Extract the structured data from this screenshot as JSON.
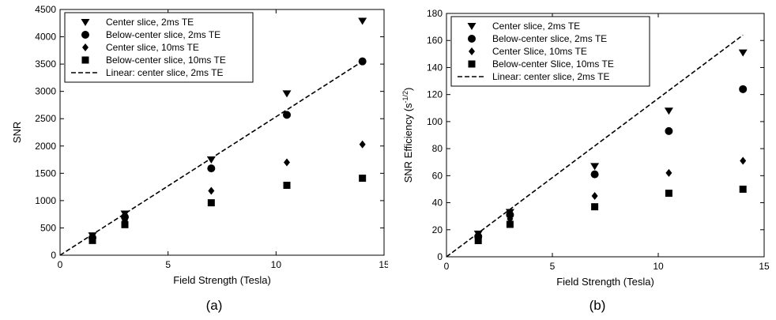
{
  "chart_data": [
    {
      "type": "scatter",
      "panel_label": "(a)",
      "xlabel": "Field Strength (Tesla)",
      "ylabel": "SNR",
      "xlim": [
        0,
        15
      ],
      "ylim": [
        0,
        4500
      ],
      "xticks": [
        0,
        5,
        10,
        15
      ],
      "yticks": [
        0,
        500,
        1000,
        1500,
        2000,
        2500,
        3000,
        3500,
        4000,
        4500
      ],
      "legend_position": "top-left",
      "grid": false,
      "series": [
        {
          "name": "Center slice, 2ms TE",
          "marker": "triangle-down",
          "x": [
            1.5,
            3,
            7,
            10.5,
            14
          ],
          "y": [
            360,
            760,
            1750,
            2960,
            4290
          ]
        },
        {
          "name": "Below-center slice, 2ms TE",
          "marker": "circle",
          "x": [
            1.5,
            3,
            7,
            10.5,
            14
          ],
          "y": [
            320,
            700,
            1590,
            2570,
            3550
          ]
        },
        {
          "name": "Center slice, 10ms TE",
          "marker": "diamond",
          "x": [
            1.5,
            3,
            7,
            10.5,
            14
          ],
          "y": [
            300,
            640,
            1180,
            1700,
            2030
          ]
        },
        {
          "name": "Below-center slice, 10ms TE",
          "marker": "square",
          "x": [
            1.5,
            3,
            7,
            10.5,
            14
          ],
          "y": [
            270,
            560,
            960,
            1280,
            1410
          ]
        },
        {
          "name": "Linear: center slice, 2ms TE",
          "marker": "dashed-line",
          "x": [
            0,
            14
          ],
          "y": [
            0,
            3550
          ]
        }
      ]
    },
    {
      "type": "scatter",
      "panel_label": "(b)",
      "xlabel": "Field Strength (Tesla)",
      "ylabel": "SNR Efficiency (s",
      "ylabel_sup": "-1/2",
      "ylabel_close": ")",
      "xlim": [
        0,
        15
      ],
      "ylim": [
        0,
        180
      ],
      "xticks": [
        0,
        5,
        10,
        15
      ],
      "yticks": [
        0,
        20,
        40,
        60,
        80,
        100,
        120,
        140,
        160,
        180
      ],
      "legend_position": "top-left",
      "grid": false,
      "series": [
        {
          "name": "Center slice, 2ms TE",
          "marker": "triangle-down",
          "x": [
            1.5,
            3,
            7,
            10.5,
            14
          ],
          "y": [
            17,
            33,
            67,
            108,
            151
          ]
        },
        {
          "name": "Below-center slice, 2ms TE",
          "marker": "circle",
          "x": [
            1.5,
            3,
            7,
            10.5,
            14
          ],
          "y": [
            15,
            31,
            61,
            93,
            124
          ]
        },
        {
          "name": "Center Slice, 10ms TE",
          "marker": "diamond",
          "x": [
            1.5,
            3,
            7,
            10.5,
            14
          ],
          "y": [
            14,
            28,
            45,
            62,
            71
          ]
        },
        {
          "name": "Below-center Slice, 10ms TE",
          "marker": "square",
          "x": [
            1.5,
            3,
            7,
            10.5,
            14
          ],
          "y": [
            12,
            24,
            37,
            47,
            50
          ]
        },
        {
          "name": "Linear: center slice, 2ms TE",
          "marker": "dashed-line",
          "x": [
            0,
            14
          ],
          "y": [
            0,
            164
          ]
        }
      ]
    }
  ]
}
